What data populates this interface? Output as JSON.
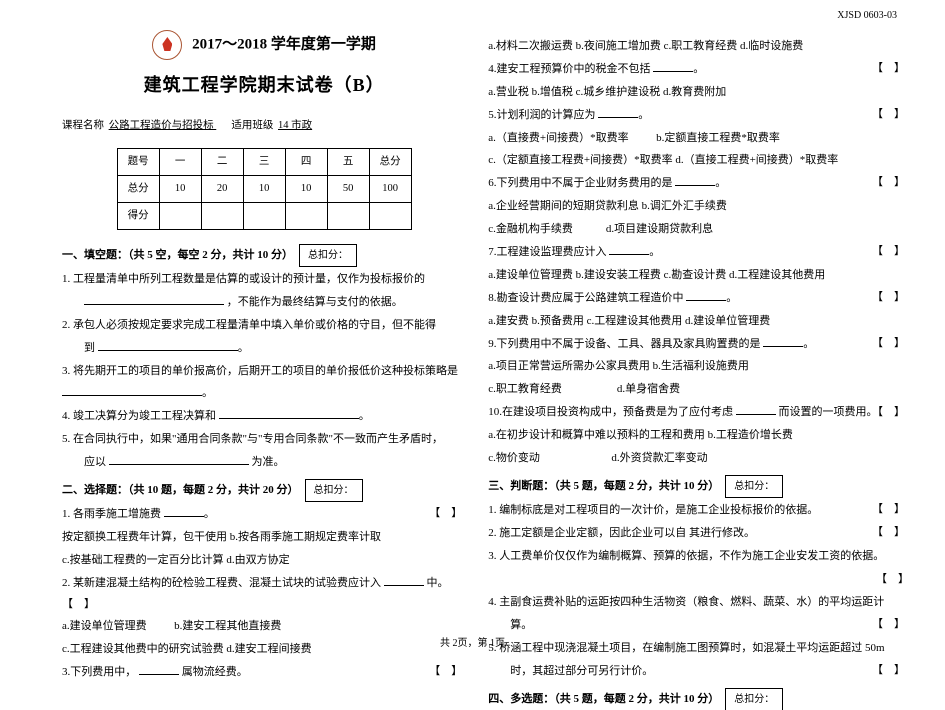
{
  "doc_code": "XJSD 0603-03",
  "header": {
    "year_line": "2017～2018 学年度第一学期",
    "title": "建筑工程学院期末试卷（B）"
  },
  "course": {
    "course_label": "课程名称",
    "course_value": "  公路工程造价与招投标  ",
    "class_label": "适用班级",
    "class_value": "  14 市政  "
  },
  "score_table": {
    "headers": [
      "题号",
      "一",
      "二",
      "三",
      "四",
      "五",
      "总分"
    ],
    "row_total_label": "总分",
    "row_total_values": [
      "10",
      "20",
      "10",
      "10",
      "50",
      "100"
    ],
    "row_got_label": "得分",
    "row_got_values": [
      "",
      "",
      "",
      "",
      "",
      ""
    ]
  },
  "sectionA": {
    "title": "一、填空题：（共 5 空，每空 2 分，共计 10 分）",
    "deduct": "总扣分：",
    "q1a": "1. 工程量清单中所列工程数量是估算的或设计的预计量，仅作为投标报价的",
    "q1b": "，不能作为最终结算与支付的依据。",
    "q2": "2. 承包人必须按规定要求完成工程量清单中填入单价或价格的守目，但不能得",
    "q2b": "到",
    "q3": "3. 将先期开工的项目的单价报高价，后期开工的项目的单价报低价这种投标策略是",
    "q4": "4. ",
    "q4a": "竣工决算分为竣工工程决算和",
    "q5a": "5. 在合同执行中，如果\"通用合同条款\"与\"专用合同条款\"不一致而产生矛盾时，",
    "q5b": "应以",
    "q5c": "为准。"
  },
  "sectionB": {
    "title": "二、选择题：（共 10 题，每题 2 分，共计 20 分）",
    "deduct": "总扣分：",
    "q1": "1. 各雨季施工增施费",
    "opts1": "按定额换工程费年计算，包干使用 b.按各雨季施工期规定费率计取",
    "opts1b": "c.按基础工程费的一定百分比计算 d.由双方协定",
    "q2": "2. 某新建混凝土结构的砼检验工程费、混凝土试块的试验费应计入",
    "q2end": "中。【　】",
    "opts2a": "a.建设单位管理费",
    "opts2b": "b.建安工程其他直接费",
    "opts2c": "c.工程建设其他费中的研究试验费 d.建安工程间接费",
    "q3": "3.下列费用中，",
    "q3b": "属物流经费。"
  },
  "rightCol": {
    "l1": "a.材料二次搬运费 b.夜间施工增加费 c.职工教育经费 d.临时设施费",
    "l2": "4.建安工程预算价中的税金不包括",
    "l2a": "a.营业税 b.增值税 c.城乡维护建设税 d.教育费附加",
    "l3": "5.计划利润的计算应为",
    "l3a": "a.（直接费+间接费）*取费率",
    "l3b": "b.定额直接工程费*取费率",
    "l3c": "c.（定额直接工程费+间接费）*取费率 d.（直接工程费+间接费）*取费率",
    "l4": "6.下列费用中不属于企业财务费用的是",
    "l4a": "a.企业经营期间的短期贷款利息 b.调汇外汇手续费",
    "l4b": "c.金融机构手续费",
    "l4c": "d.项目建设期贷款利息",
    "l5": "7.工程建设监理费应计入",
    "l5a": "a.建设单位管理费 b.建设安装工程费 c.勘查设计费 d.工程建设其他费用",
    "l6": "8.勘查设计费应属于公路建筑工程造价中",
    "l6a": "a.建安费 b.预备费用 c.工程建设其他费用 d.建设单位管理费",
    "l7": "9.下列费用中不属于设备、工具、器具及家具购置费的是",
    "l7a": "a.项目正常营运所需办公家具费用 b.生活福利设施费用",
    "l7b": "c.职工教育经费",
    "l7c": "d.单身宿舍费",
    "l8": "10.在建设项目投资构成中，预备费是为了应付考虑",
    "l8b": "而设置的一项费用。【　】",
    "l8a": "a.在初步设计和概算中难以预料的工程和费用 b.工程造价增长费",
    "l8c": "c.物价变动",
    "l8d": "d.外资贷款汇率变动"
  },
  "sectionC": {
    "title": "三、判断题：（共 5 题，每题 2 分，共计 10 分）",
    "deduct": "总扣分：",
    "q1": "1. 编制标底是对工程项目的一次计价，是施工企业投标报价的依据。",
    "q2": "2. 施工定额是企业定额，因此企业可以自 其进行修改。",
    "q3": "3. 人工费单价仅仅作为编制概算、预算的依据，不作为施工企业安发工资的依据。",
    "q4": "4. 主副食运费补贴的运距按四种生活物资（粮食、燃料、蔬菜、水）的平均运距计",
    "q4b": "算。",
    "q5": "5. 桥涵工程中现浇混凝土项目，在编制施工图预算时，如混凝土平均运距超过 50m",
    "q5b": "时，其超过部分可另行计价。"
  },
  "sectionD": {
    "title": "四、多选题：（共 5 题，每题 2 分，共计 10 分）",
    "deduct": "总扣分："
  },
  "footer": "共 2页，第 1页"
}
